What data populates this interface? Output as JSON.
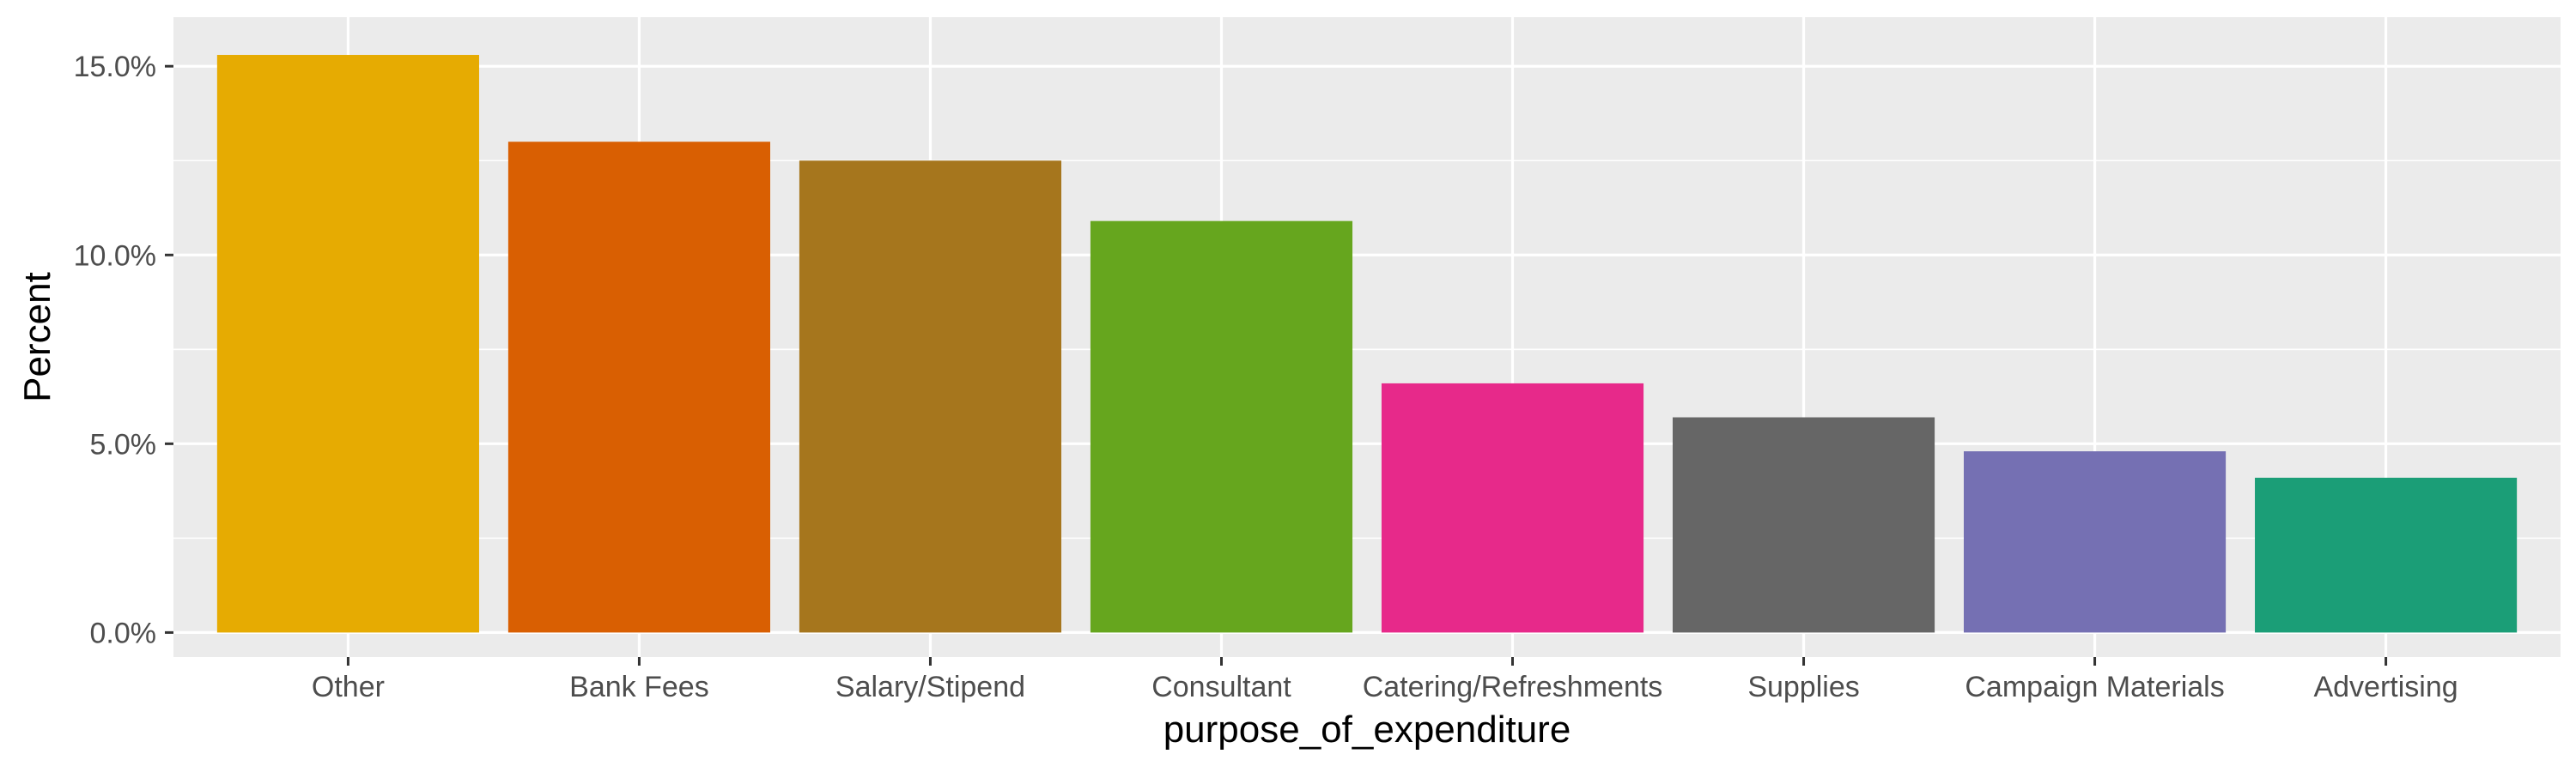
{
  "chart_data": {
    "type": "bar",
    "title": "",
    "xlabel": "purpose_of_expenditure",
    "ylabel": "Percent",
    "categories": [
      "Other",
      "Bank Fees",
      "Salary/Stipend",
      "Consultant",
      "Catering/Refreshments",
      "Supplies",
      "Campaign Materials",
      "Advertising"
    ],
    "values": [
      15.3,
      13.0,
      12.5,
      10.9,
      6.6,
      5.7,
      4.8,
      4.1
    ],
    "colors": [
      "#E6AB02",
      "#D95F02",
      "#A6761D",
      "#66A61E",
      "#E7298A",
      "#666666",
      "#7570B3",
      "#1B9E77"
    ],
    "ylim": [
      -0.65,
      16.3
    ],
    "yticks": [
      0,
      5,
      10,
      15
    ],
    "ytick_labels": [
      "0.0%",
      "5.0%",
      "10.0%",
      "15.0%"
    ],
    "grid": true,
    "legend": "none",
    "panel_background": "#EBEBEB"
  }
}
